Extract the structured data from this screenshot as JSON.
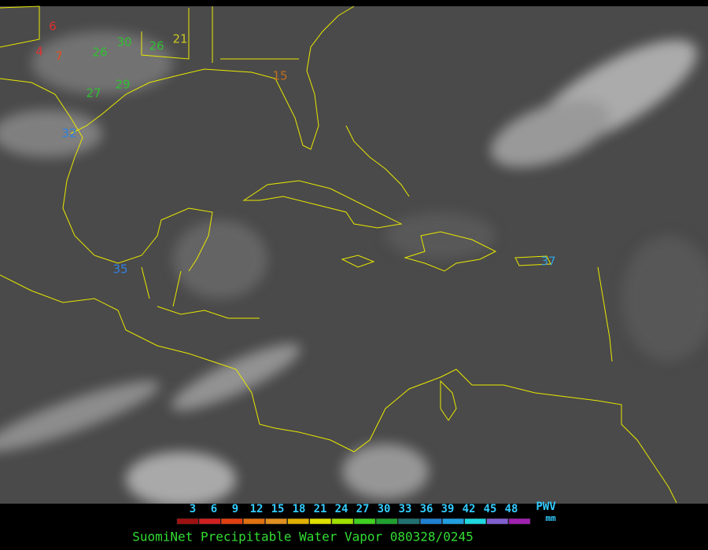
{
  "map": {
    "stations": [
      {
        "value": 6,
        "color": "#e03030"
      },
      {
        "value": 4,
        "color": "#e03030"
      },
      {
        "value": 7,
        "color": "#e05020"
      },
      {
        "value": 26,
        "color": "#30c030"
      },
      {
        "value": 30,
        "color": "#30c030"
      },
      {
        "value": 26,
        "color": "#30c030"
      },
      {
        "value": 21,
        "color": "#c8c820"
      },
      {
        "value": 27,
        "color": "#30c030"
      },
      {
        "value": 29,
        "color": "#30c030"
      },
      {
        "value": 15,
        "color": "#c07020"
      },
      {
        "value": 32,
        "color": "#3080e0"
      },
      {
        "value": 35,
        "color": "#3080e0"
      },
      {
        "value": 37,
        "color": "#30a0e0"
      }
    ],
    "colorbar": {
      "ticks": [
        3,
        6,
        9,
        12,
        15,
        18,
        21,
        24,
        27,
        30,
        33,
        36,
        39,
        42,
        45,
        48
      ],
      "colors": [
        "#a01010",
        "#d02020",
        "#e04010",
        "#e07010",
        "#e09020",
        "#e0b000",
        "#e0e000",
        "#a0e000",
        "#40d020",
        "#20a030",
        "#207070",
        "#2080d0",
        "#20a0e0",
        "#20d8e0",
        "#8060d0",
        "#a020b0"
      ],
      "unit": "PWV",
      "unit_sub": "mm"
    },
    "title": "SuomiNet Precipitable Water Vapor 080328/0245"
  }
}
